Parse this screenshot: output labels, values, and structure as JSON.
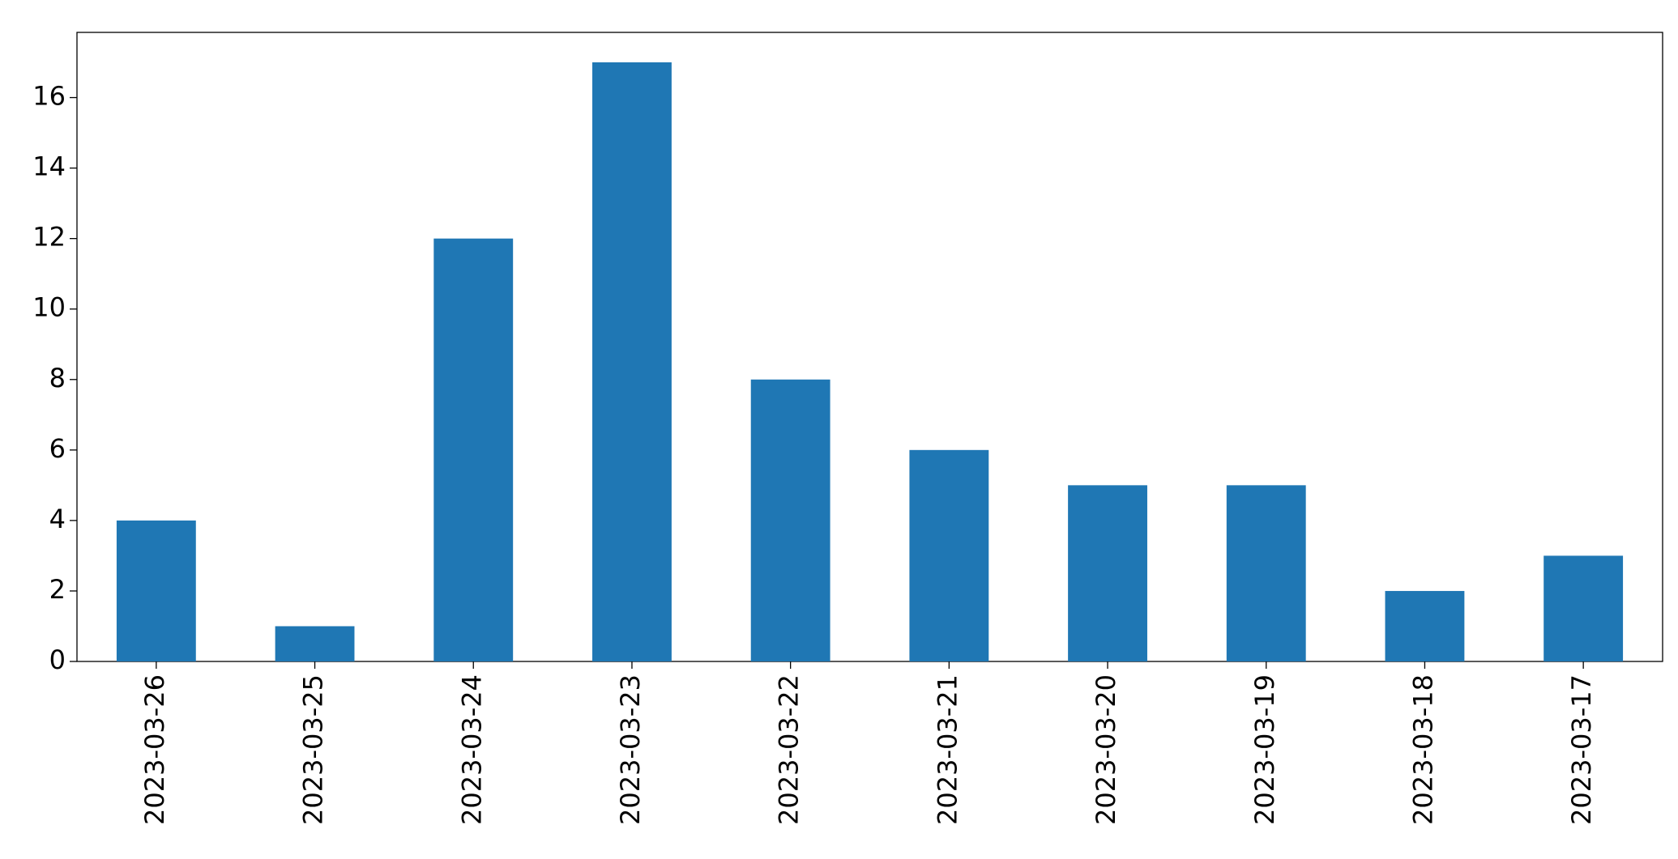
{
  "chart_data": {
    "type": "bar",
    "categories": [
      "2023-03-26",
      "2023-03-25",
      "2023-03-24",
      "2023-03-23",
      "2023-03-22",
      "2023-03-21",
      "2023-03-20",
      "2023-03-19",
      "2023-03-18",
      "2023-03-17"
    ],
    "values": [
      4,
      1,
      12,
      17,
      8,
      6,
      5,
      5,
      2,
      3
    ],
    "color": "#1f77b4",
    "ylim": [
      0,
      17.85
    ],
    "yticks": [
      0,
      2,
      4,
      6,
      8,
      10,
      12,
      14,
      16
    ],
    "grid": false
  }
}
